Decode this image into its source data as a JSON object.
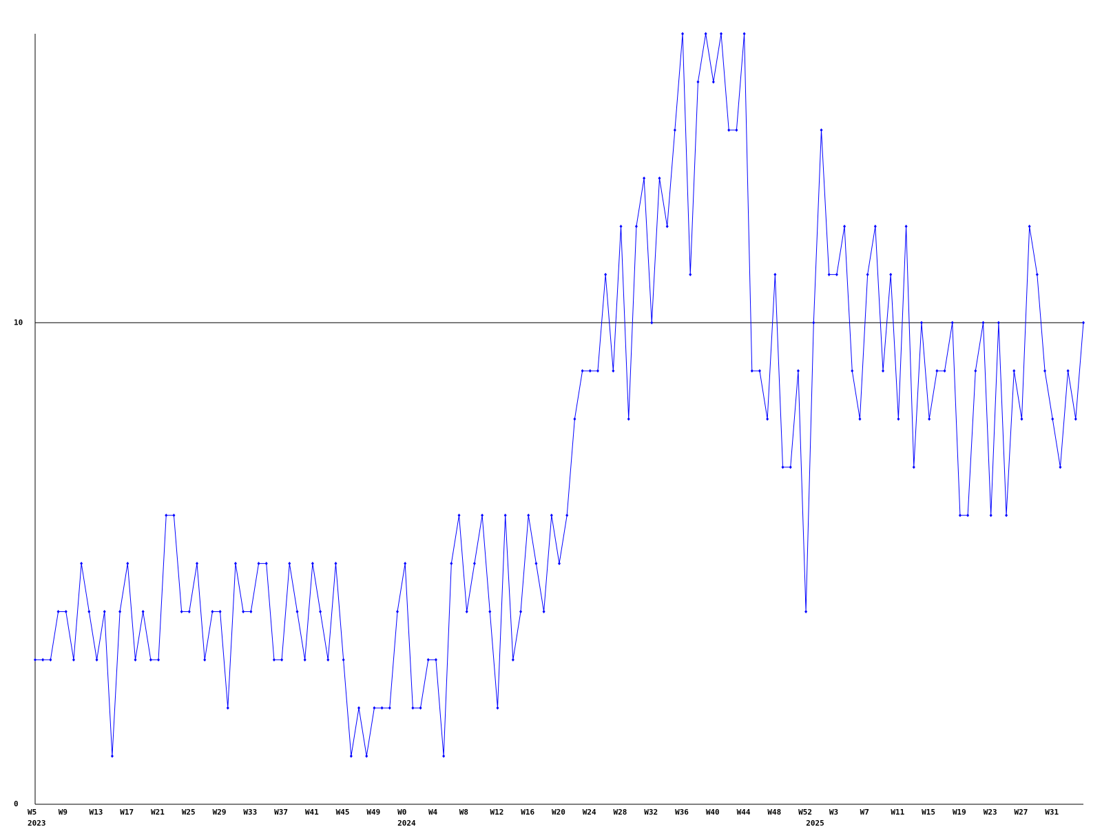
{
  "chart_data": {
    "type": "line",
    "categories": [
      "W5",
      null,
      null,
      null,
      "W9",
      null,
      null,
      null,
      "W13",
      null,
      null,
      null,
      "W17",
      null,
      null,
      null,
      "W21",
      null,
      null,
      null,
      "W25",
      null,
      null,
      null,
      "W29",
      null,
      null,
      null,
      "W33",
      null,
      null,
      null,
      "W37",
      null,
      null,
      null,
      "W41",
      null,
      null,
      null,
      "W45",
      null,
      null,
      null,
      "W49",
      null,
      null,
      null,
      "W0",
      null,
      null,
      null,
      "W4",
      null,
      null,
      null,
      "W8",
      null,
      null,
      null,
      "W12",
      null,
      null,
      null,
      "W16",
      null,
      null,
      null,
      "W20",
      null,
      null,
      null,
      "W24",
      null,
      null,
      null,
      "W28",
      null,
      null,
      null,
      "W32",
      null,
      null,
      null,
      "W36",
      null,
      null,
      null,
      "W40",
      null,
      null,
      null,
      "W44",
      null,
      null,
      null,
      "W48",
      null,
      null,
      null,
      "W52",
      null,
      null,
      null,
      "W3",
      null,
      null,
      null,
      "W7",
      null,
      null,
      null,
      "W11",
      null,
      null,
      null,
      "W15",
      null,
      null,
      null,
      "W19",
      null,
      null,
      null,
      "W23",
      null,
      null,
      null,
      "W27",
      null,
      null,
      null,
      "W31",
      null,
      null,
      null,
      null
    ],
    "year_labels": [
      "2023",
      null,
      null,
      null,
      null,
      null,
      null,
      null,
      null,
      null,
      null,
      null,
      null,
      null,
      null,
      null,
      null,
      null,
      null,
      null,
      null,
      null,
      null,
      null,
      null,
      null,
      null,
      null,
      null,
      null,
      null,
      null,
      null,
      null,
      null,
      null,
      null,
      null,
      null,
      null,
      null,
      null,
      null,
      null,
      null,
      null,
      null,
      null,
      "2024",
      null,
      null,
      null,
      null,
      null,
      null,
      null,
      null,
      null,
      null,
      null,
      null,
      null,
      null,
      null,
      null,
      null,
      null,
      null,
      null,
      null,
      null,
      null,
      null,
      null,
      null,
      null,
      null,
      null,
      null,
      null,
      null,
      null,
      null,
      null,
      null,
      null,
      null,
      null,
      null,
      null,
      null,
      null,
      null,
      null,
      null,
      null,
      null,
      null,
      null,
      null,
      null,
      "2025",
      null,
      null,
      null,
      null,
      null,
      null,
      null,
      null,
      null,
      null,
      null,
      null,
      null,
      null,
      null,
      null,
      null,
      null,
      null,
      null,
      null,
      null,
      null,
      null,
      null,
      null,
      null,
      null,
      null,
      null,
      null,
      null,
      null,
      null,
      null
    ],
    "values": [
      3,
      3,
      3,
      4,
      4,
      3,
      5,
      4,
      3,
      4,
      1,
      4,
      5,
      3,
      4,
      3,
      3,
      6,
      6,
      4,
      4,
      5,
      3,
      4,
      4,
      2,
      5,
      4,
      4,
      5,
      5,
      3,
      3,
      5,
      4,
      3,
      5,
      4,
      3,
      5,
      3,
      1,
      2,
      1,
      2,
      2,
      2,
      4,
      5,
      2,
      2,
      3,
      3,
      1,
      5,
      6,
      4,
      5,
      6,
      4,
      2,
      6,
      3,
      4,
      6,
      5,
      4,
      6,
      5,
      6,
      8,
      9,
      9,
      9,
      11,
      9,
      12,
      8,
      12,
      13,
      10,
      13,
      12,
      14,
      16,
      11,
      15,
      16,
      15,
      16,
      14,
      14,
      16,
      9,
      9,
      8,
      11,
      7,
      7,
      9,
      4,
      10,
      14,
      11,
      11,
      12,
      9,
      8,
      11,
      12,
      9,
      11,
      8,
      12,
      7,
      10,
      8,
      9,
      9,
      10,
      6,
      6,
      9,
      10,
      6,
      10,
      6,
      9,
      8,
      12,
      11,
      9,
      8,
      7,
      9,
      8,
      10
    ],
    "color": "#0000ff",
    "ylim": [
      0,
      16
    ],
    "yticks": [
      0,
      10
    ],
    "grid": true,
    "grid_color": "#000000"
  }
}
